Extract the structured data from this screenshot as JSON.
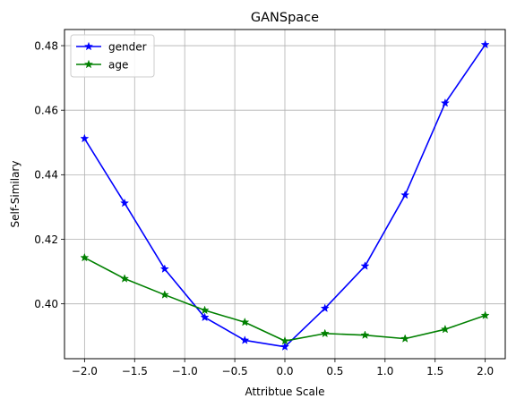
{
  "chart_data": {
    "type": "line",
    "title": "GANSpace",
    "xlabel": "Attribtue Scale",
    "ylabel": "Self-Similary",
    "x": [
      -2.0,
      -1.6,
      -1.2,
      -0.8,
      -0.4,
      0.0,
      0.4,
      0.8,
      1.2,
      1.6,
      2.0
    ],
    "xlim": [
      -2.2,
      2.2
    ],
    "ylim": [
      0.383,
      0.485
    ],
    "xticks": [
      -2.0,
      -1.5,
      -1.0,
      -0.5,
      0.0,
      0.5,
      1.0,
      1.5,
      2.0
    ],
    "xtick_labels": [
      "−2.0",
      "−1.5",
      "−1.0",
      "−0.5",
      "0.0",
      "0.5",
      "1.0",
      "1.5",
      "2.0"
    ],
    "yticks": [
      0.4,
      0.42,
      0.44,
      0.46,
      0.48
    ],
    "ytick_labels": [
      "0.40",
      "0.42",
      "0.44",
      "0.46",
      "0.48"
    ],
    "grid": true,
    "legend_position": "top-left",
    "series": [
      {
        "name": "gender",
        "color": "#0000ff",
        "marker": "star",
        "values": [
          0.4512,
          0.4312,
          0.4108,
          0.3958,
          0.3887,
          0.3867,
          0.3986,
          0.4117,
          0.4337,
          0.4622,
          0.4803
        ]
      },
      {
        "name": "age",
        "color": "#008000",
        "marker": "star",
        "values": [
          0.4143,
          0.4078,
          0.4028,
          0.398,
          0.3943,
          0.3885,
          0.3908,
          0.3903,
          0.3892,
          0.3921,
          0.3964
        ]
      }
    ]
  }
}
